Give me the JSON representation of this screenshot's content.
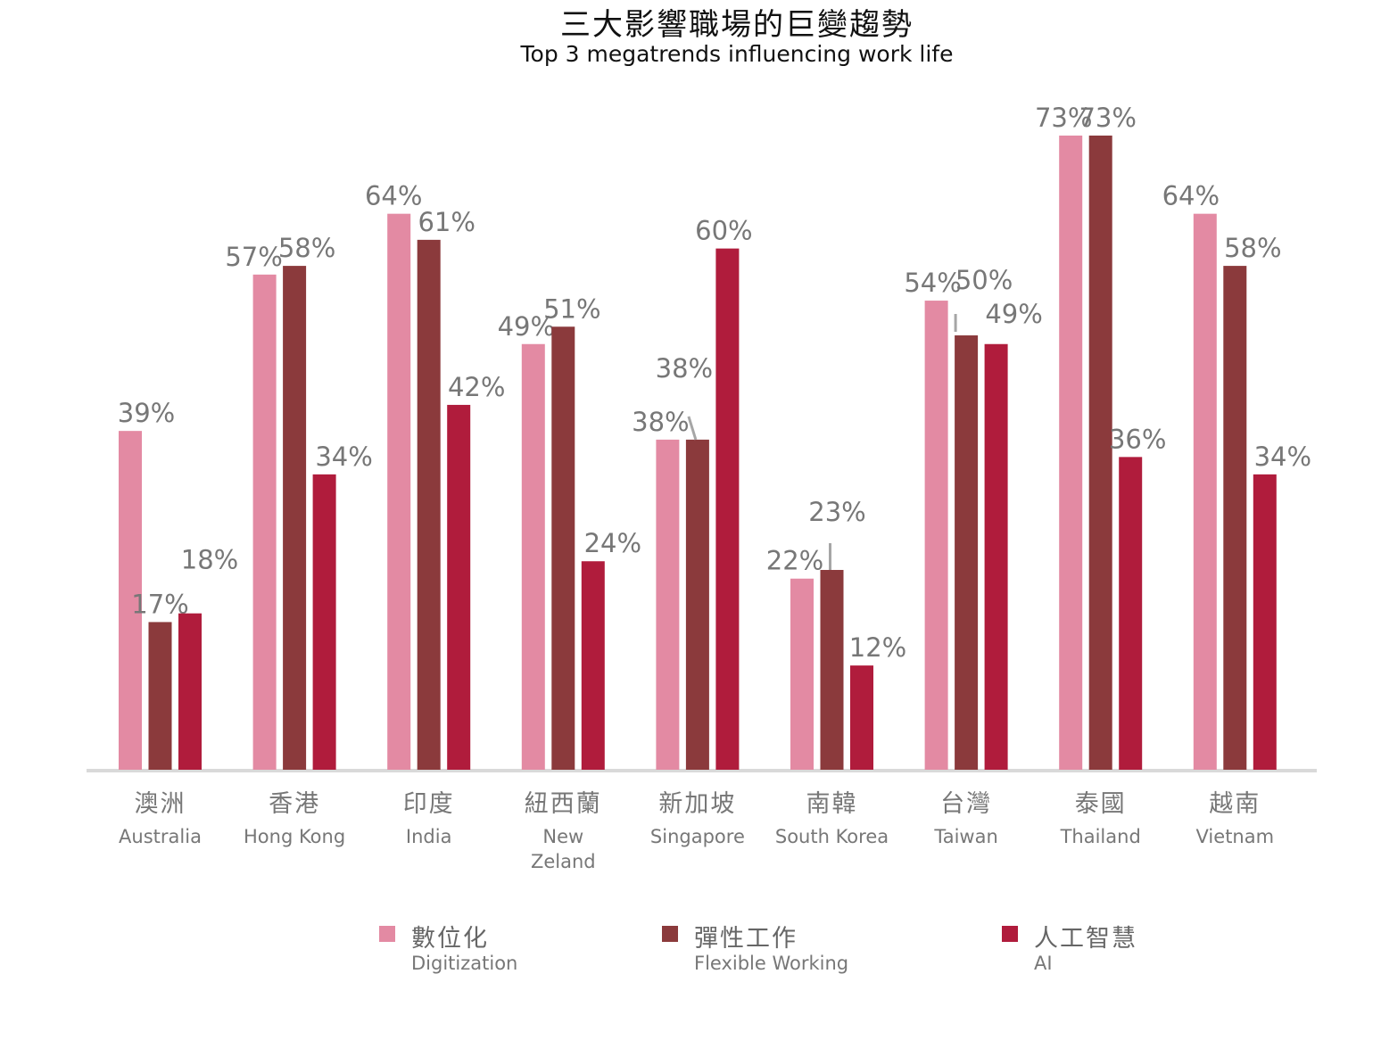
{
  "title_zh": "三大影響職場的巨變趨勢",
  "title_en": "Top 3 megatrends influencing work life",
  "legend": [
    {
      "zh": "數位化",
      "en": "Digitization",
      "color": "#e38aa3"
    },
    {
      "zh": "彈性工作",
      "en": "Flexible Working",
      "color": "#8b3a3c"
    },
    {
      "zh": "人工智慧",
      "en": "AI",
      "color": "#b01c3c"
    }
  ],
  "chart_data": {
    "type": "bar",
    "categories": [
      {
        "zh": "澳洲",
        "en": "Australia"
      },
      {
        "zh": "香港",
        "en": "Hong Kong"
      },
      {
        "zh": "印度",
        "en": "India"
      },
      {
        "zh": "紐西蘭",
        "en": "New Zeland"
      },
      {
        "zh": "新加坡",
        "en": "Singapore"
      },
      {
        "zh": "南韓",
        "en": "South Korea"
      },
      {
        "zh": "台灣",
        "en": "Taiwan"
      },
      {
        "zh": "泰國",
        "en": "Thailand"
      },
      {
        "zh": "越南",
        "en": "Vietnam"
      }
    ],
    "series": [
      {
        "name": "Digitization",
        "color": "#e38aa3",
        "values": [
          39,
          57,
          64,
          49,
          38,
          22,
          54,
          73,
          64
        ]
      },
      {
        "name": "Flexible Working",
        "color": "#8b3a3c",
        "values": [
          17,
          58,
          61,
          51,
          38,
          23,
          50,
          73,
          58
        ]
      },
      {
        "name": "AI",
        "color": "#b01c3c",
        "values": [
          18,
          34,
          42,
          24,
          60,
          12,
          49,
          36,
          34
        ]
      }
    ],
    "value_format": "{v}%",
    "ylim": [
      0,
      73
    ],
    "grid": false,
    "legend_position": "bottom",
    "label_color": "#777777",
    "axis_color": "#d9d9d9"
  }
}
